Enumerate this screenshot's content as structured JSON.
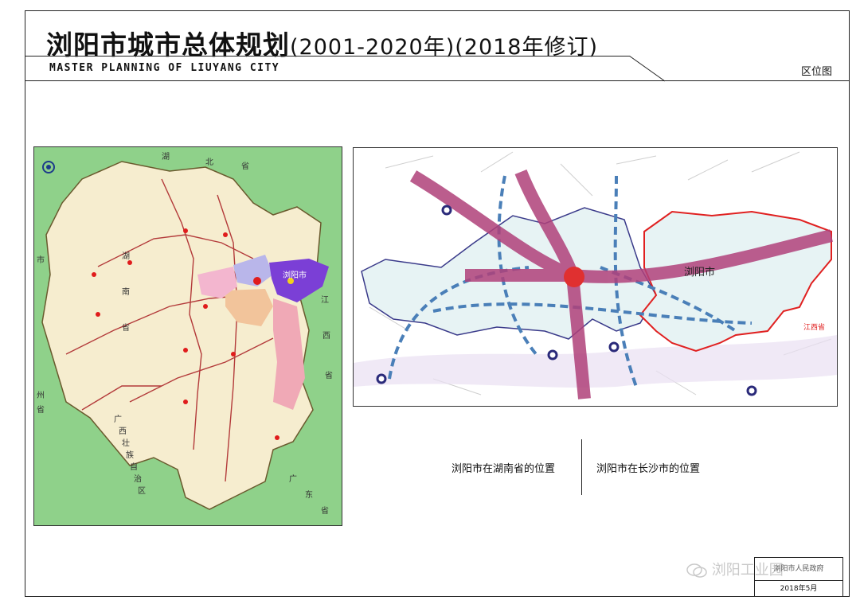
{
  "header": {
    "title": "浏阳市城市总体规划",
    "title_suffix": "(2001-2020年)(2018年修订)",
    "subtitle": "MASTER PLANNING OF LIUYANG CITY",
    "sheet_name": "区位图"
  },
  "hunan_map": {
    "caption": "浏阳市在湖南省的位置",
    "region_labels": {
      "hubei_1": "湖",
      "hubei_2": "北",
      "hubei_3": "省",
      "jiangxi_1": "江",
      "jiangxi_2": "西",
      "jiangxi_3": "省",
      "guangdong_1": "广",
      "guangdong_2": "东",
      "guangdong_3": "省",
      "guangxi_1": "广",
      "guangxi_2": "西",
      "guangxi_3": "壮",
      "guangxi_4": "族",
      "guangxi_5": "自",
      "guangxi_6": "治",
      "guangxi_7": "区",
      "guizhou_1": "州",
      "guizhou_2": "省",
      "chongqing": "市",
      "hunan_1": "湖",
      "hunan_2": "南",
      "hunan_3": "省"
    },
    "highlight_label": "浏阳市",
    "colors": {
      "sea": "#8fd18a",
      "province": "#f6edcf",
      "liuyang": "#7b3fd6",
      "changsha": "#b9b6ea",
      "zhuzhou": "#f0a9b6",
      "xiangtan": "#f2c49b",
      "border": "#6a5a2e",
      "road": "#b33a3a",
      "city": "#e01c1c"
    }
  },
  "changsha_map": {
    "caption": "浏阳市在长沙市的位置",
    "labels": {
      "liuyang": "浏阳市",
      "jiangxi": "江西省"
    },
    "colors": {
      "arrow_main": "#b0417a",
      "arrow_dashed": "#4a7fb8",
      "liuyang_border": "#e02020",
      "county_border": "#3a3a8a",
      "fill": "#e7f3f4",
      "center": "#e03030"
    }
  },
  "watermark": {
    "text": "浏阳工业园"
  },
  "stamp": {
    "org": "浏阳市人民政府",
    "date": "2018年5月"
  }
}
